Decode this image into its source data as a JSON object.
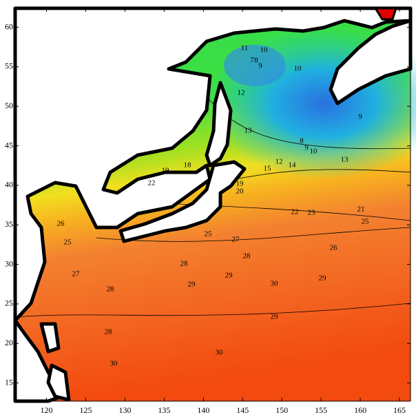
{
  "chart_data": {
    "type": "contour",
    "xlim": [
      116,
      166.4
    ],
    "ylim": [
      12.7,
      62.4
    ],
    "xticks": [
      120,
      125,
      130,
      135,
      140,
      145,
      150,
      155,
      160,
      165
    ],
    "yticks": [
      15,
      20,
      25,
      30,
      35,
      40,
      45,
      50,
      55,
      60
    ],
    "contour_labels": [
      "11",
      "10",
      "7",
      "8",
      "9",
      "12",
      "13",
      "10",
      "9",
      "8",
      "9",
      "10",
      "13",
      "12",
      "14",
      "15",
      "19",
      "18",
      "19",
      "22",
      "20",
      "22",
      "23",
      "21",
      "25",
      "26",
      "25",
      "26",
      "27",
      "28",
      "28",
      "29",
      "30",
      "29",
      "29",
      "29",
      "28",
      "30",
      "30",
      "27",
      "28",
      "25"
    ]
  }
}
